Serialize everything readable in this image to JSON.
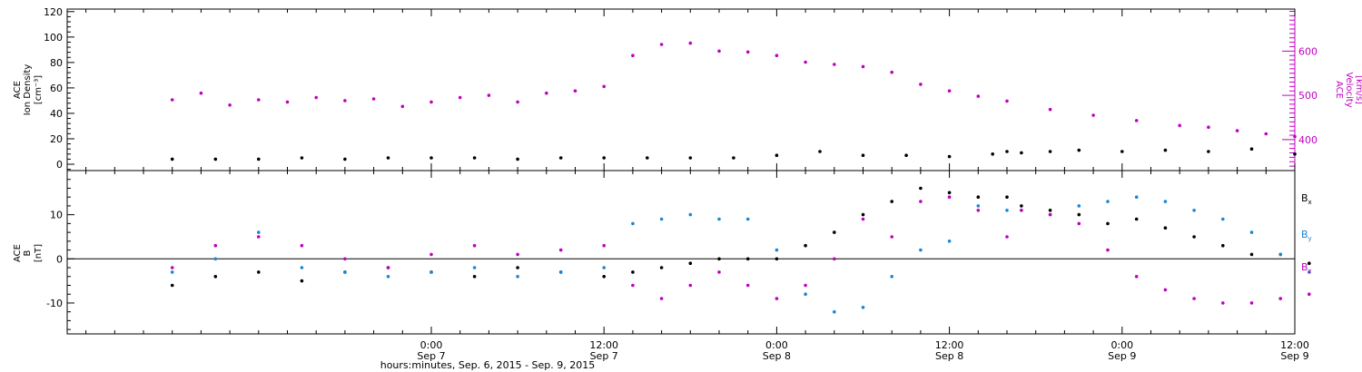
{
  "chart_data": [
    {
      "type": "scatter",
      "panel": "top",
      "ylabel_lines": [
        "ACE",
        "Ion Density"
      ],
      "yunit": "[cm⁻³]",
      "ylim": [
        -5,
        122
      ],
      "yticks": [
        0,
        20,
        40,
        60,
        80,
        100,
        120
      ],
      "y2label_lines": [
        "ACE",
        "Velocity"
      ],
      "y2unit": "[km/s]",
      "y2lim": [
        330,
        695
      ],
      "y2ticks": [
        400,
        500,
        600
      ],
      "y2tick_labels": [
        "400",
        "500",
        "600"
      ],
      "series": [
        {
          "name": "",
          "axis": "left",
          "color": "#000000",
          "x": [
            -18,
            -15,
            -12,
            -9,
            -6,
            -3,
            0,
            3,
            6,
            9,
            12,
            15,
            18,
            21,
            24,
            27,
            30,
            33,
            36,
            39,
            40,
            41,
            43,
            45,
            48,
            51,
            54,
            57,
            60
          ],
          "y": [
            4,
            4,
            4,
            5,
            4,
            5,
            5,
            5,
            4,
            5,
            5,
            5,
            5,
            5,
            7,
            10,
            7,
            7,
            6,
            8,
            10,
            9,
            10,
            11,
            10,
            11,
            10,
            12,
            8
          ]
        },
        {
          "name": "",
          "axis": "right",
          "color": "#c000c0",
          "x": [
            -18,
            -16,
            -14,
            -12,
            -10,
            -8,
            -6,
            -4,
            -2,
            0,
            2,
            4,
            6,
            8,
            10,
            12,
            14,
            16,
            18,
            20,
            22,
            24,
            26,
            28,
            30,
            32,
            34,
            36,
            38,
            40,
            43,
            46,
            49,
            52,
            54,
            56,
            58,
            60
          ],
          "y": [
            490,
            505,
            478,
            490,
            485,
            495,
            488,
            492,
            475,
            485,
            495,
            500,
            485,
            505,
            510,
            520,
            590,
            615,
            618,
            600,
            598,
            590,
            575,
            570,
            565,
            552,
            525,
            510,
            498,
            487,
            468,
            455,
            443,
            432,
            428,
            420,
            413,
            407
          ]
        }
      ]
    },
    {
      "type": "scatter",
      "panel": "bottom",
      "ylabel_lines": [
        "ACE",
        "B"
      ],
      "yunit": "[nT]",
      "ylim": [
        -17,
        20
      ],
      "yticks": [
        -10,
        0,
        10
      ],
      "reference_line": 0,
      "xlabel": "hours:minutes, Sep.  6, 2015 - Sep.  9, 2015",
      "xlim": [
        -25.3,
        60
      ],
      "xticks": [
        0,
        12,
        24,
        36,
        48,
        60
      ],
      "xtick_labels": [
        "0:00",
        "12:00",
        "0:00",
        "12:00",
        "0:00",
        "12:00"
      ],
      "xtick_dates": [
        "Sep 7",
        "Sep 7",
        "Sep 8",
        "Sep 8",
        "Sep 9",
        "Sep 9"
      ],
      "series": [
        {
          "name": "Bx",
          "label_main": "B",
          "label_sub": "x",
          "color": "#000000",
          "x": [
            -18,
            -15,
            -12,
            -9,
            -6,
            -3,
            0,
            3,
            6,
            9,
            12,
            14,
            16,
            18,
            20,
            22,
            24,
            26,
            28,
            30,
            32,
            34,
            36,
            38,
            40,
            41,
            43,
            45,
            47,
            49,
            51,
            53,
            55,
            57,
            59,
            61
          ],
          "y": [
            -6,
            -4,
            -3,
            -5,
            -3,
            -2,
            -3,
            -4,
            -2,
            -3,
            -4,
            -3,
            -2,
            -1,
            0,
            0,
            0,
            3,
            6,
            10,
            13,
            16,
            15,
            14,
            14,
            12,
            11,
            10,
            8,
            9,
            7,
            5,
            3,
            1,
            1,
            -1
          ]
        },
        {
          "name": "By",
          "label_main": "B",
          "label_sub": "y",
          "color": "#1a86d6",
          "x": [
            -18,
            -15,
            -12,
            -9,
            -6,
            -3,
            0,
            3,
            6,
            9,
            12,
            14,
            16,
            18,
            20,
            22,
            24,
            26,
            28,
            30,
            32,
            34,
            36,
            38,
            40,
            41,
            43,
            45,
            47,
            49,
            51,
            53,
            55,
            57,
            59,
            61
          ],
          "y": [
            -3,
            0,
            6,
            -2,
            -3,
            -4,
            -3,
            -2,
            -4,
            -3,
            -2,
            8,
            9,
            10,
            9,
            9,
            2,
            -8,
            -12,
            -11,
            -4,
            2,
            4,
            12,
            11,
            11,
            10,
            12,
            13,
            14,
            13,
            11,
            9,
            6,
            1,
            -3
          ]
        },
        {
          "name": "Bz",
          "label_main": "B",
          "label_sub": "z",
          "color": "#c000c0",
          "x": [
            -18,
            -15,
            -12,
            -9,
            -6,
            -3,
            0,
            3,
            6,
            9,
            12,
            14,
            16,
            18,
            20,
            22,
            24,
            26,
            28,
            30,
            32,
            34,
            36,
            38,
            40,
            41,
            43,
            45,
            47,
            49,
            51,
            53,
            55,
            57,
            59,
            61
          ],
          "y": [
            -2,
            3,
            5,
            3,
            0,
            -2,
            1,
            3,
            1,
            2,
            3,
            -6,
            -9,
            -6,
            -3,
            -6,
            -9,
            -6,
            0,
            9,
            5,
            13,
            14,
            11,
            5,
            11,
            10,
            8,
            2,
            -4,
            -7,
            -9,
            -10,
            -10,
            -9,
            -8
          ]
        }
      ]
    }
  ]
}
